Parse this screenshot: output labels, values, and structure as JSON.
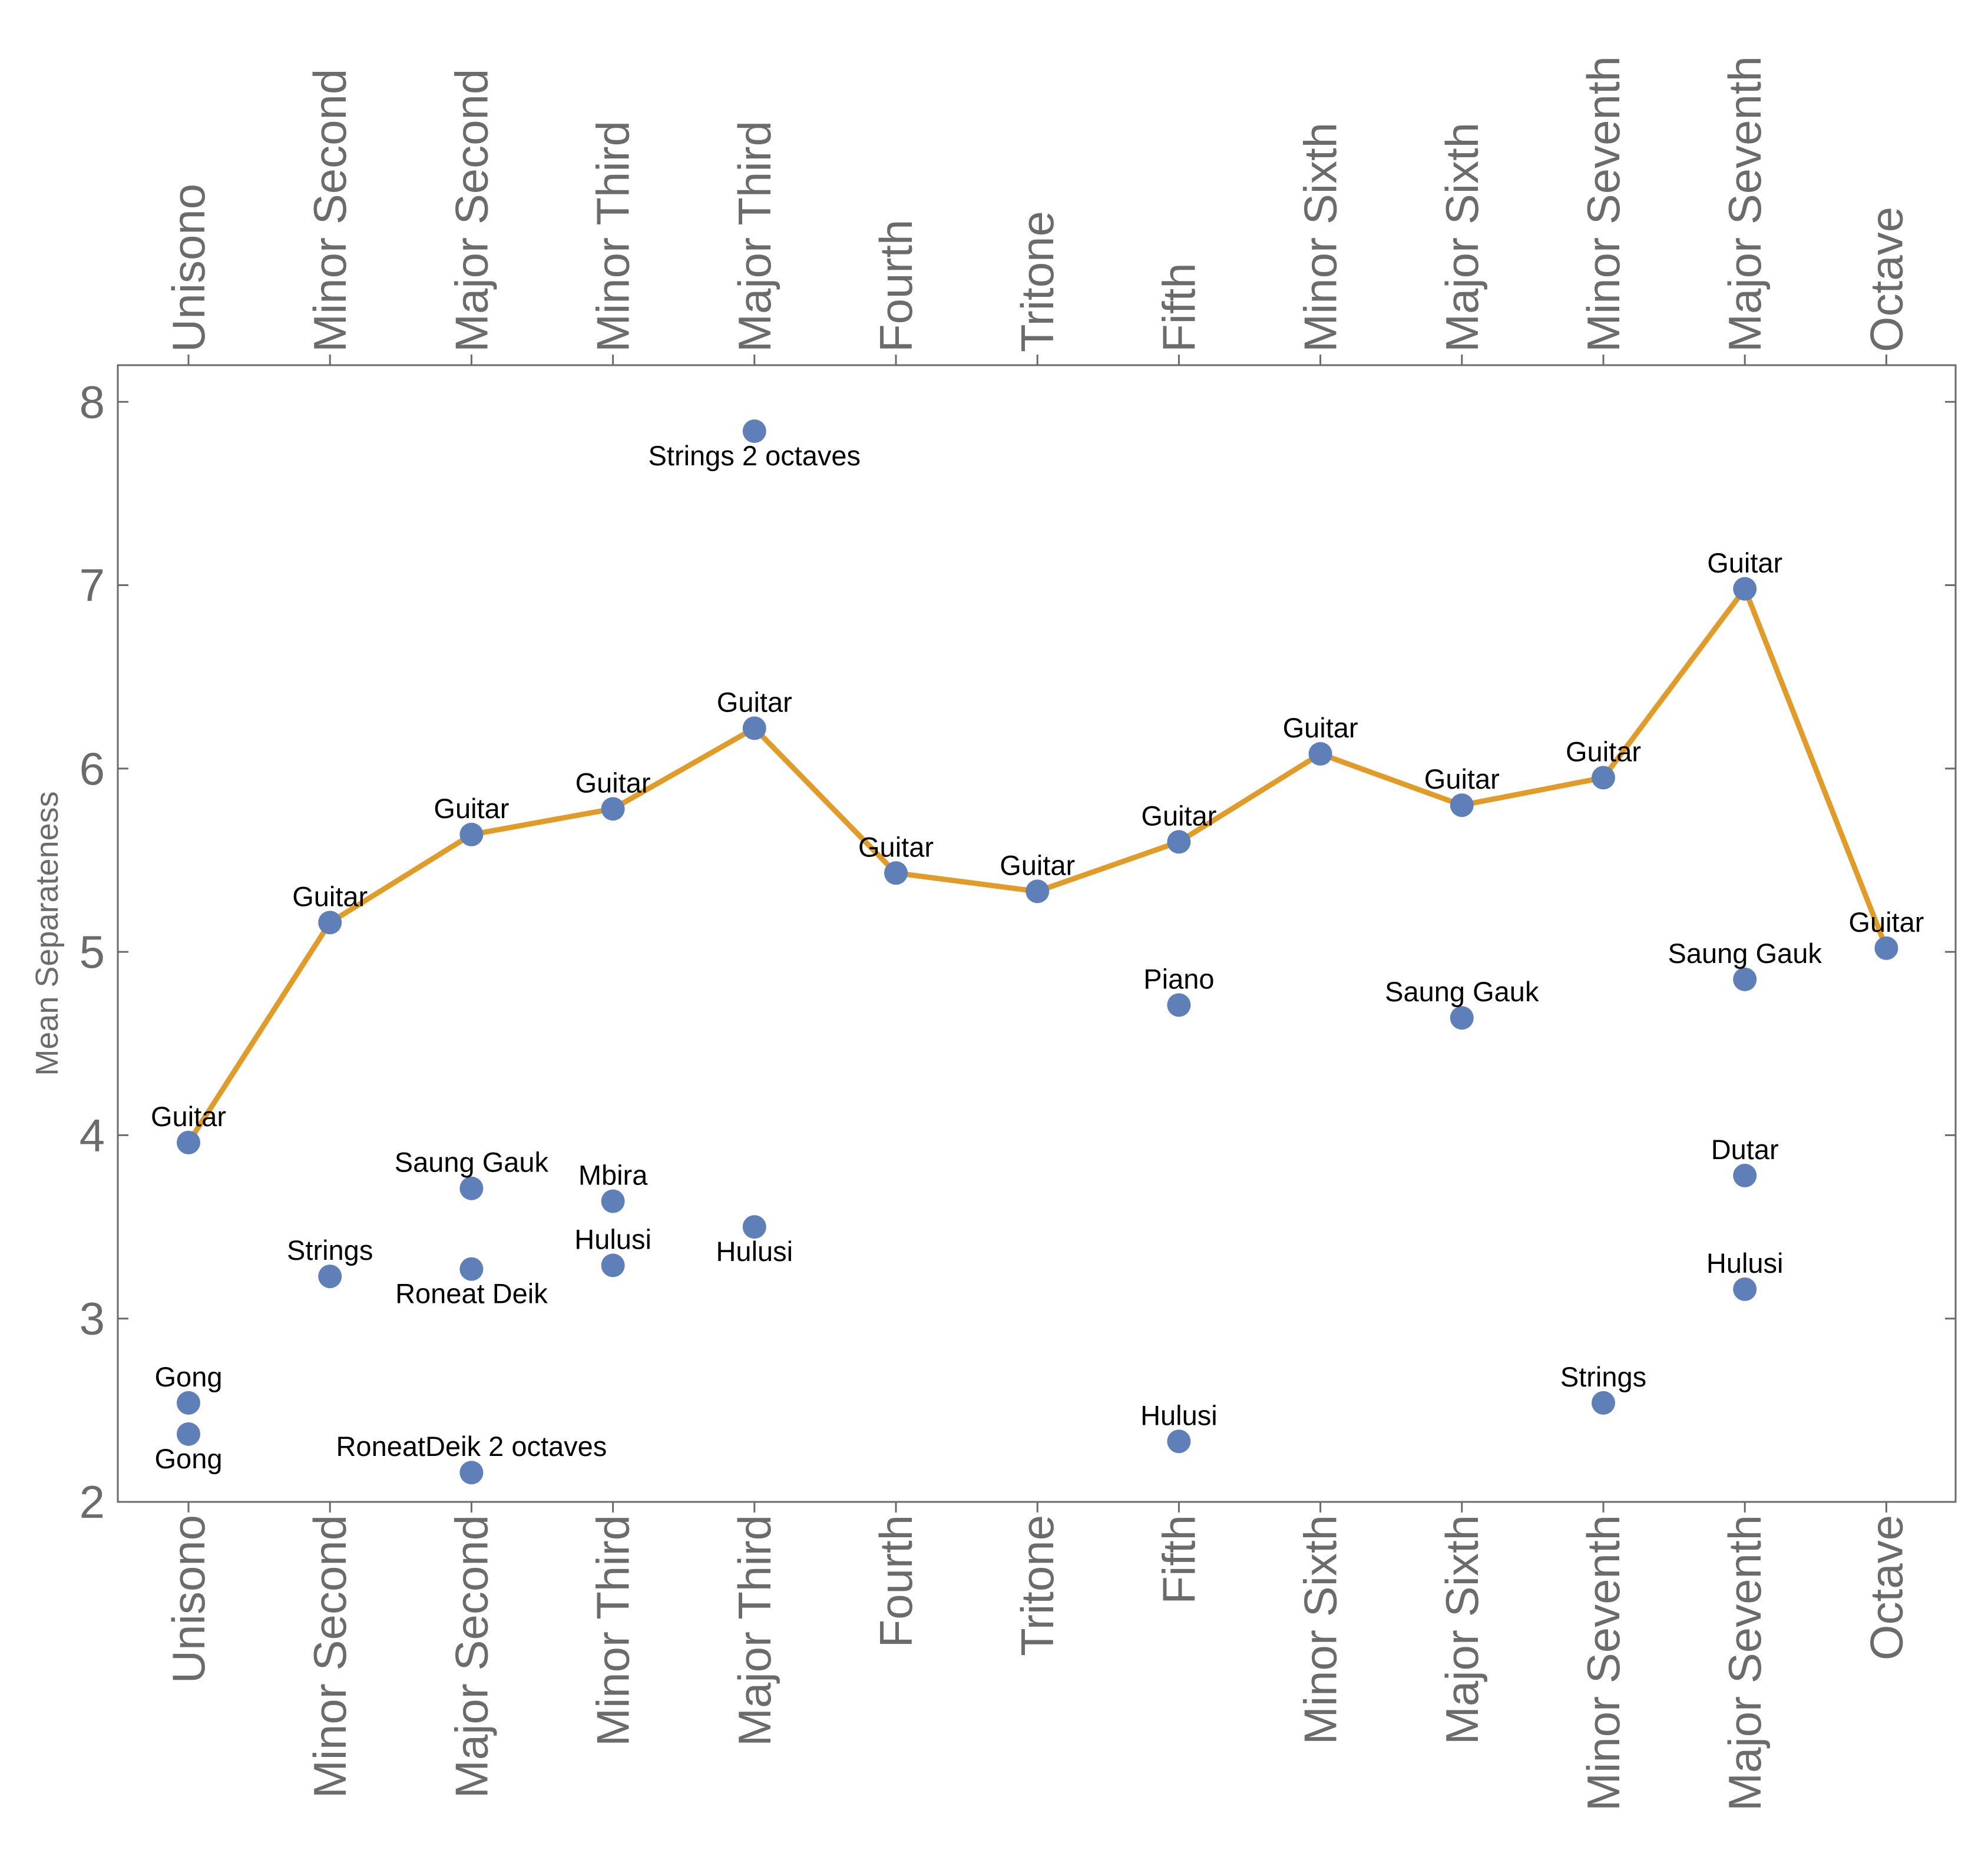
{
  "chart_data": {
    "type": "scatter",
    "title": "",
    "xlabel": "",
    "ylabel": "Mean Separateness",
    "ylim": [
      2,
      8.2
    ],
    "yticks": [
      2,
      3,
      4,
      5,
      6,
      7,
      8
    ],
    "categories": [
      "Unisono",
      "Minor Second",
      "Major Second",
      "Minor Third",
      "Major Third",
      "Fourth",
      "Tritone",
      "Fifth",
      "Minor Sixth",
      "Major Sixth",
      "Minor Seventh",
      "Major Seventh",
      "Octave"
    ],
    "line_series": {
      "name": "Guitar",
      "color": "#e09b28",
      "values": [
        3.96,
        5.16,
        5.64,
        5.78,
        6.22,
        5.43,
        5.33,
        5.6,
        6.08,
        5.8,
        5.95,
        6.98,
        5.02
      ]
    },
    "point_color": "#5e7fb8",
    "points": [
      {
        "category": 0,
        "value": 3.96,
        "label": "Guitar",
        "label_pos": "above"
      },
      {
        "category": 1,
        "value": 5.16,
        "label": "Guitar",
        "label_pos": "above"
      },
      {
        "category": 2,
        "value": 5.64,
        "label": "Guitar",
        "label_pos": "above"
      },
      {
        "category": 3,
        "value": 5.78,
        "label": "Guitar",
        "label_pos": "above"
      },
      {
        "category": 4,
        "value": 6.22,
        "label": "Guitar",
        "label_pos": "above"
      },
      {
        "category": 5,
        "value": 5.43,
        "label": "Guitar",
        "label_pos": "above"
      },
      {
        "category": 6,
        "value": 5.33,
        "label": "Guitar",
        "label_pos": "above"
      },
      {
        "category": 7,
        "value": 5.6,
        "label": "Guitar",
        "label_pos": "above"
      },
      {
        "category": 8,
        "value": 6.08,
        "label": "Guitar",
        "label_pos": "above"
      },
      {
        "category": 9,
        "value": 5.8,
        "label": "Guitar",
        "label_pos": "above"
      },
      {
        "category": 10,
        "value": 5.95,
        "label": "Guitar",
        "label_pos": "above"
      },
      {
        "category": 11,
        "value": 6.98,
        "label": "Guitar",
        "label_pos": "above"
      },
      {
        "category": 12,
        "value": 5.02,
        "label": "Guitar",
        "label_pos": "above"
      },
      {
        "category": 4,
        "value": 7.84,
        "label": "Strings 2 octaves",
        "label_pos": "below"
      },
      {
        "category": 0,
        "value": 2.54,
        "label": "Gong",
        "label_pos": "above"
      },
      {
        "category": 0,
        "value": 2.37,
        "label": "Gong",
        "label_pos": "below"
      },
      {
        "category": 1,
        "value": 3.23,
        "label": "Strings",
        "label_pos": "above"
      },
      {
        "category": 2,
        "value": 3.71,
        "label": "Saung Gauk",
        "label_pos": "above"
      },
      {
        "category": 2,
        "value": 3.27,
        "label": "Roneat Deik",
        "label_pos": "below"
      },
      {
        "category": 2,
        "value": 2.16,
        "label": "RoneatDeik 2 octaves",
        "label_pos": "above"
      },
      {
        "category": 3,
        "value": 3.64,
        "label": "Mbira",
        "label_pos": "above"
      },
      {
        "category": 3,
        "value": 3.29,
        "label": "Hulusi",
        "label_pos": "above"
      },
      {
        "category": 4,
        "value": 3.5,
        "label": "Hulusi",
        "label_pos": "below"
      },
      {
        "category": 7,
        "value": 4.71,
        "label": "Piano",
        "label_pos": "above"
      },
      {
        "category": 7,
        "value": 2.33,
        "label": "Hulusi",
        "label_pos": "above"
      },
      {
        "category": 9,
        "value": 4.64,
        "label": "Saung Gauk",
        "label_pos": "above"
      },
      {
        "category": 10,
        "value": 2.54,
        "label": "Strings",
        "label_pos": "above"
      },
      {
        "category": 11,
        "value": 4.85,
        "label": "Saung Gauk",
        "label_pos": "above"
      },
      {
        "category": 11,
        "value": 3.78,
        "label": "Dutar",
        "label_pos": "above"
      },
      {
        "category": 11,
        "value": 3.16,
        "label": "Hulusi",
        "label_pos": "above"
      }
    ]
  }
}
